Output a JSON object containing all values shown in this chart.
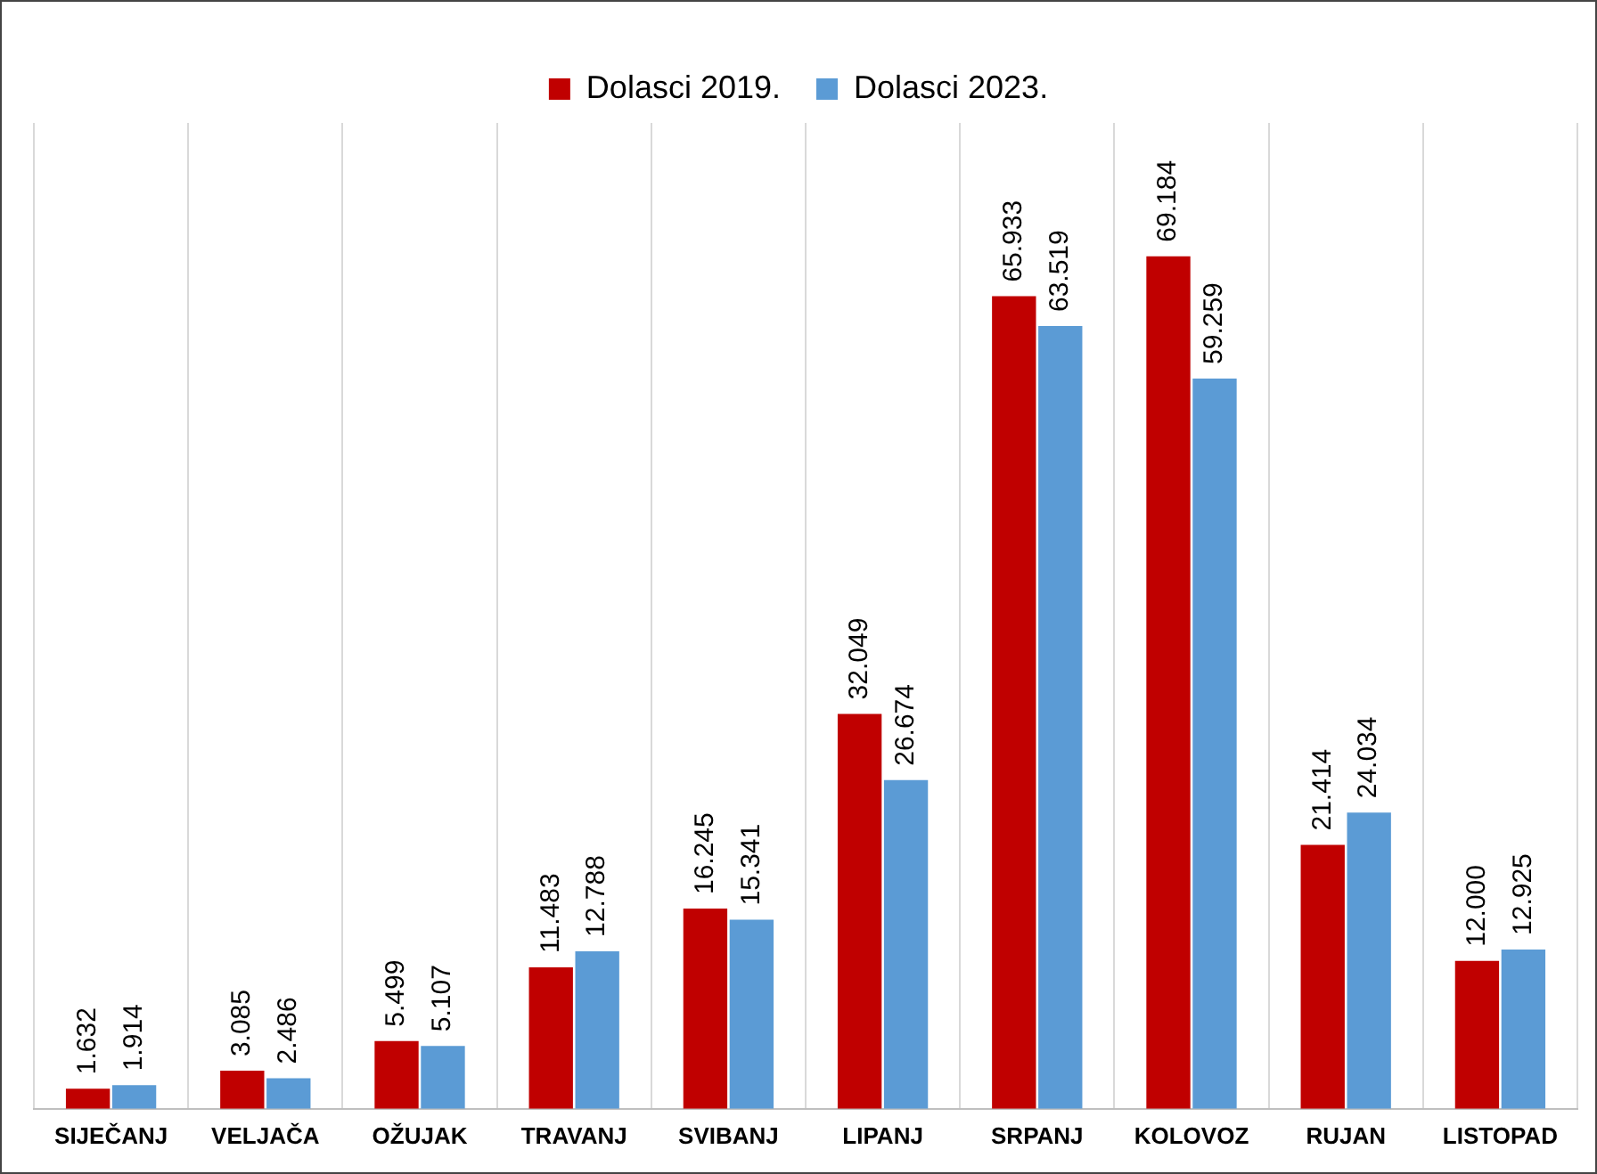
{
  "chart_data": {
    "type": "bar",
    "categories": [
      "SIJEČANJ",
      "VELJAČA",
      "OŽUJAK",
      "TRAVANJ",
      "SVIBANJ",
      "LIPANJ",
      "SRPANJ",
      "KOLOVOZ",
      "RUJAN",
      "LISTOPAD"
    ],
    "series": [
      {
        "name": "Dolasci 2019.",
        "color": "#c00000",
        "values": [
          1632,
          3085,
          5499,
          11483,
          16245,
          32049,
          65933,
          69184,
          21414,
          12000
        ],
        "value_labels": [
          "1.632",
          "3.085",
          "5.499",
          "11.483",
          "16.245",
          "32.049",
          "65.933",
          "69.184",
          "21.414",
          "12.000"
        ]
      },
      {
        "name": "Dolasci 2023.",
        "color": "#5b9bd5",
        "values": [
          1914,
          2486,
          5107,
          12788,
          15341,
          26674,
          63519,
          59259,
          24034,
          12925
        ],
        "value_labels": [
          "1.914",
          "2.486",
          "5.107",
          "12.788",
          "15.341",
          "26.674",
          "63.519",
          "59.259",
          "24.034",
          "12.925"
        ]
      }
    ],
    "grid": "x",
    "legend": "top",
    "tick_labels": "x"
  }
}
